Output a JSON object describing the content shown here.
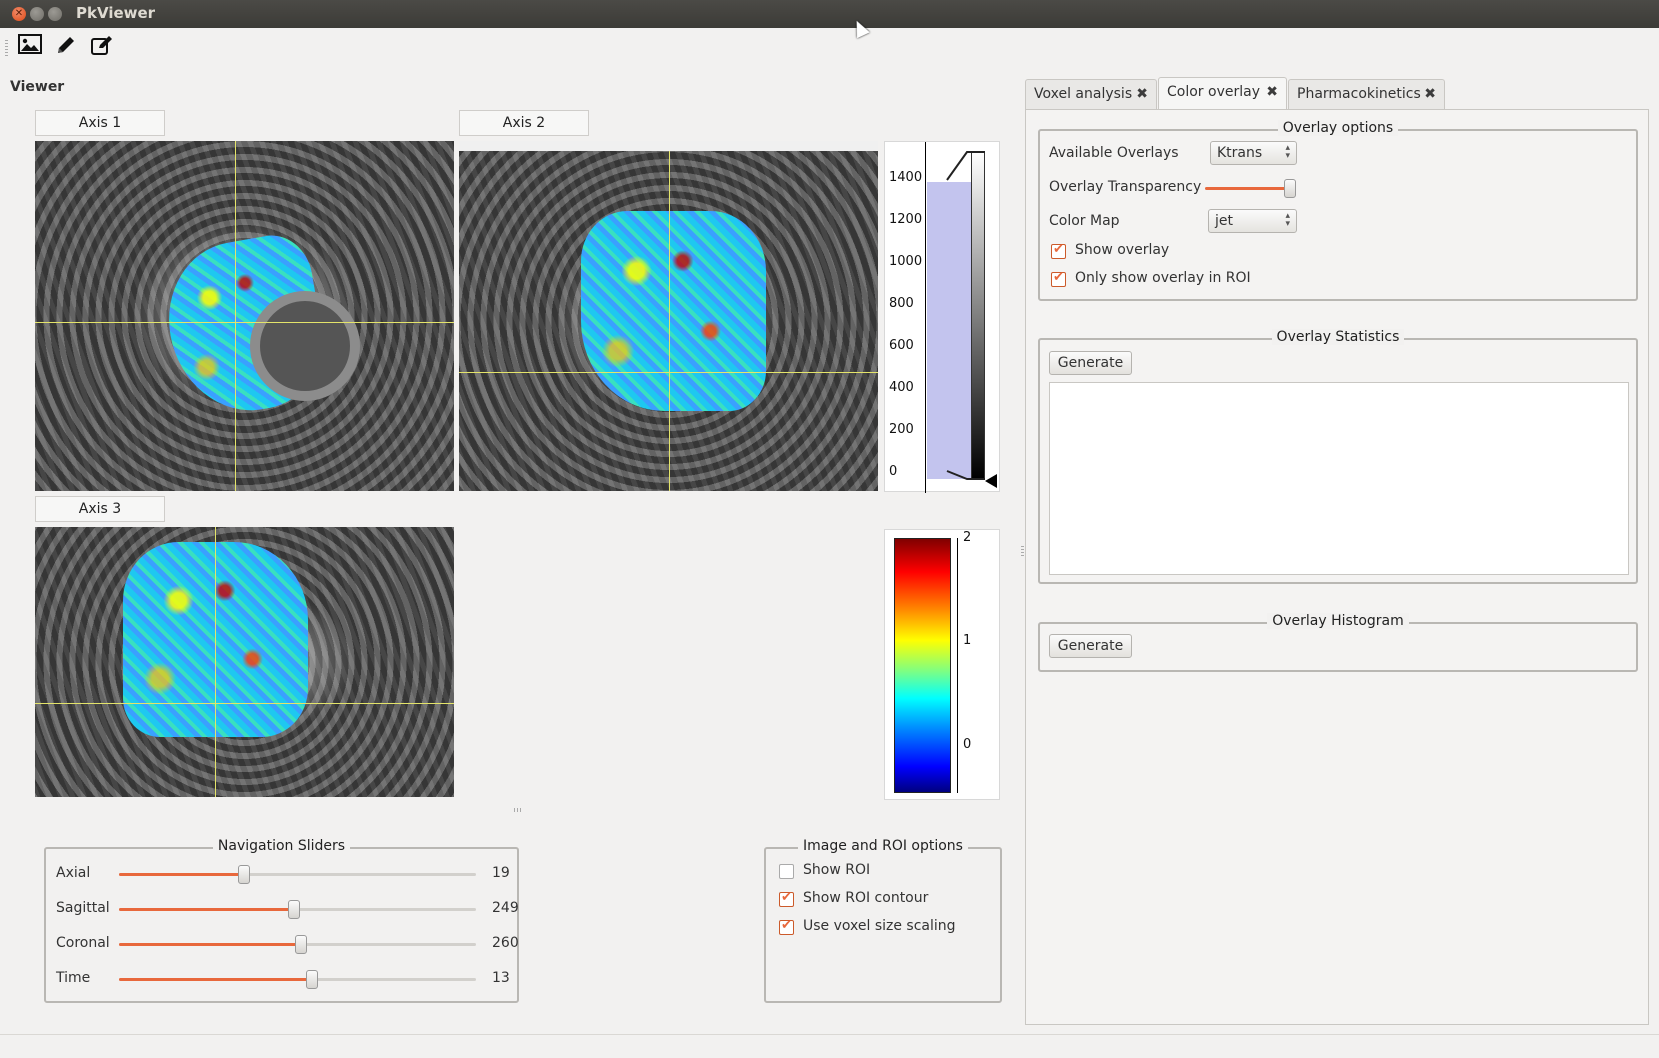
{
  "window": {
    "title": "PkViewer"
  },
  "toolbar": {
    "icons": [
      "image-icon",
      "pencil-icon",
      "edit-icon"
    ]
  },
  "viewer": {
    "label": "Viewer",
    "axes": [
      {
        "label": "Axis 1"
      },
      {
        "label": "Axis 2"
      },
      {
        "label": "Axis 3"
      }
    ],
    "histogram": {
      "ticks": [
        "1400",
        "1200",
        "1000",
        "800",
        "600",
        "400",
        "200",
        "0"
      ]
    },
    "colorbar": {
      "ticks": [
        "2",
        "1",
        "0"
      ],
      "colormap": "jet"
    }
  },
  "navigation": {
    "title": "Navigation Sliders",
    "sliders": [
      {
        "label": "Axial",
        "value": "19",
        "fraction": 0.35
      },
      {
        "label": "Sagittal",
        "value": "249",
        "fraction": 0.49
      },
      {
        "label": "Coronal",
        "value": "260",
        "fraction": 0.51
      },
      {
        "label": "Time",
        "value": "13",
        "fraction": 0.54
      }
    ]
  },
  "roi_options": {
    "title": "Image and ROI options",
    "items": [
      {
        "label": "Show ROI",
        "checked": false
      },
      {
        "label": "Show ROI contour",
        "checked": true
      },
      {
        "label": "Use voxel size scaling",
        "checked": true
      }
    ]
  },
  "tabs": [
    {
      "label": "Voxel analysis",
      "active": false
    },
    {
      "label": "Color overlay",
      "active": true
    },
    {
      "label": "Pharmacokinetics",
      "active": false
    }
  ],
  "overlay_options": {
    "title": "Overlay options",
    "available_overlays_label": "Available Overlays",
    "available_overlays_value": "Ktrans",
    "transparency_label": "Overlay Transparency",
    "transparency_fraction": 1.0,
    "color_map_label": "Color Map",
    "color_map_value": "jet",
    "show_overlay_label": "Show overlay",
    "show_overlay_checked": true,
    "only_roi_label": "Only show overlay in ROI",
    "only_roi_checked": true
  },
  "overlay_statistics": {
    "title": "Overlay Statistics",
    "generate_label": "Generate"
  },
  "overlay_histogram": {
    "title": "Overlay Histogram",
    "generate_label": "Generate"
  },
  "colors": {
    "accent": "#e8683c",
    "crosshair": "#e4e46a",
    "titlebar": "#3c3b37"
  }
}
